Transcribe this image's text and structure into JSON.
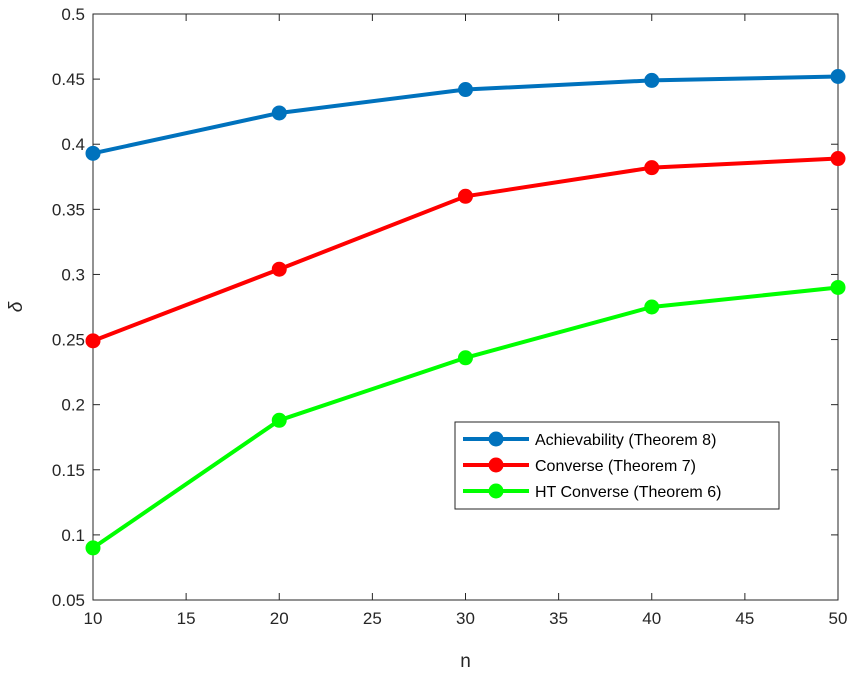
{
  "chart_data": {
    "type": "line",
    "x": [
      10,
      20,
      30,
      40,
      50
    ],
    "series": [
      {
        "name": "Achievability (Theorem 8)",
        "color": "#0072BD",
        "values": [
          0.393,
          0.424,
          0.442,
          0.449,
          0.452
        ]
      },
      {
        "name": "Converse (Theorem 7)",
        "color": "#FF0000",
        "values": [
          0.249,
          0.304,
          0.36,
          0.382,
          0.389
        ]
      },
      {
        "name": "HT Converse (Theorem 6)",
        "color": "#00FF00",
        "values": [
          0.09,
          0.188,
          0.236,
          0.275,
          0.29
        ]
      }
    ],
    "xlabel": "n",
    "ylabel": "δ",
    "xlim": [
      10,
      50
    ],
    "ylim": [
      0.05,
      0.5
    ],
    "xticks": [
      10,
      15,
      20,
      25,
      30,
      35,
      40,
      45,
      50
    ],
    "xtick_labels": [
      "10",
      "15",
      "20",
      "25",
      "30",
      "35",
      "40",
      "45",
      "50"
    ],
    "yticks": [
      0.05,
      0.1,
      0.15,
      0.2,
      0.25,
      0.3,
      0.35,
      0.4,
      0.45,
      0.5
    ],
    "ytick_labels": [
      "0.05",
      "0.1",
      "0.15",
      "0.2",
      "0.25",
      "0.3",
      "0.35",
      "0.4",
      "0.45",
      "0.5"
    ],
    "grid": false,
    "legend_position": "lower-right",
    "marker": "filled-circle"
  }
}
